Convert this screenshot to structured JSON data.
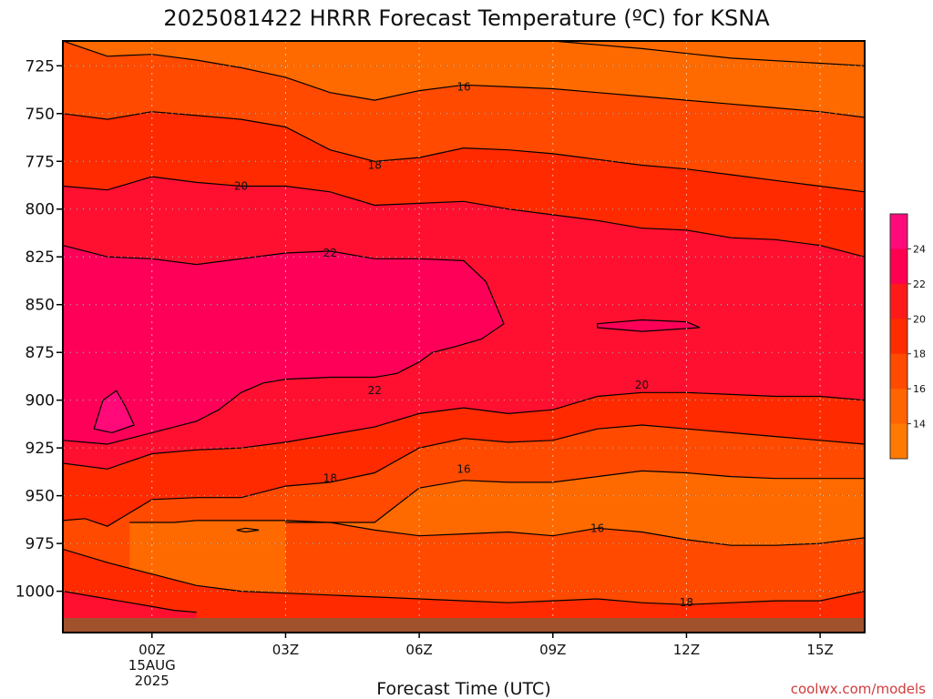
{
  "chart_data": {
    "type": "contour",
    "title": "2025081422 HRRR Forecast Temperature (ºC) for KSNA",
    "xlabel": "Forecast Time (UTC)",
    "credit": "coolwx.com/models",
    "y_ticks": [
      "725",
      "750",
      "775",
      "800",
      "825",
      "850",
      "875",
      "900",
      "925",
      "950",
      "975",
      "1000"
    ],
    "y_values": [
      725,
      750,
      775,
      800,
      825,
      850,
      875,
      900,
      925,
      950,
      975,
      1000
    ],
    "ylim": [
      712,
      1014
    ],
    "y_inverted": true,
    "x_ticks": [
      {
        "hour": 0,
        "label": "00Z",
        "sub1": "15AUG",
        "sub2": "2025"
      },
      {
        "hour": 3,
        "label": "03Z",
        "sub1": "",
        "sub2": ""
      },
      {
        "hour": 6,
        "label": "06Z",
        "sub1": "",
        "sub2": ""
      },
      {
        "hour": 9,
        "label": "09Z",
        "sub1": "",
        "sub2": ""
      },
      {
        "hour": 12,
        "label": "12Z",
        "sub1": "",
        "sub2": ""
      },
      {
        "hour": 15,
        "label": "15Z",
        "sub1": "",
        "sub2": ""
      }
    ],
    "xlim": [
      -2,
      16
    ],
    "grid": true,
    "levels": [
      14,
      16,
      18,
      20,
      22,
      24
    ],
    "colorbar": {
      "labels": [
        "24",
        "22",
        "20",
        "18",
        "16",
        "14"
      ],
      "colors": [
        "#ff0a7a",
        "#ff0050",
        "#ff1a1a",
        "#ff2c00",
        "#ff4a00",
        "#ff6400",
        "#ff7a00"
      ]
    },
    "fill_colors": {
      "above_16": "#ff6a00",
      "t16_18": "#ff4a00",
      "t18_20": "#ff2a00",
      "t20_22": "#ff1030",
      "t22_24": "#ff0058",
      "t24_plus": "#ff0a78",
      "ground": "#a0522d"
    },
    "contour_labels": [
      {
        "text": "16",
        "x": 7.0,
        "y": 736
      },
      {
        "text": "18",
        "x": 5.0,
        "y": 777
      },
      {
        "text": "20",
        "x": 2.0,
        "y": 788
      },
      {
        "text": "22",
        "x": 4.0,
        "y": 823
      },
      {
        "text": "22",
        "x": 5.0,
        "y": 895
      },
      {
        "text": "20",
        "x": 11.0,
        "y": 892
      },
      {
        "text": "18",
        "x": 4.0,
        "y": 941
      },
      {
        "text": "16",
        "x": 7.0,
        "y": 936
      },
      {
        "text": "16",
        "x": 10.0,
        "y": 967
      },
      {
        "text": "18",
        "x": 12.0,
        "y": 1006
      }
    ],
    "contours": {
      "c16_upper": [
        [
          -2,
          712
        ],
        [
          -1.5,
          716
        ],
        [
          -1,
          720
        ],
        [
          0,
          719
        ],
        [
          1,
          722
        ],
        [
          2,
          726
        ],
        [
          3,
          731
        ],
        [
          4,
          739
        ],
        [
          5,
          743
        ],
        [
          6,
          738
        ],
        [
          7,
          735
        ],
        [
          8,
          736
        ],
        [
          9,
          737
        ],
        [
          10,
          739
        ],
        [
          11,
          741
        ],
        [
          12,
          743
        ],
        [
          13,
          745
        ],
        [
          14,
          747
        ],
        [
          15,
          749
        ],
        [
          16,
          752
        ]
      ],
      "c16_top": [
        [
          9,
          712
        ],
        [
          11,
          716
        ],
        [
          13,
          721
        ],
        [
          16,
          725
        ]
      ],
      "c18_upper": [
        [
          -2,
          750
        ],
        [
          -1,
          753
        ],
        [
          0,
          749
        ],
        [
          1,
          751
        ],
        [
          2,
          753
        ],
        [
          3,
          757
        ],
        [
          4,
          769
        ],
        [
          5,
          775
        ],
        [
          6,
          773
        ],
        [
          7,
          768
        ],
        [
          8,
          769
        ],
        [
          9,
          771
        ],
        [
          10,
          774
        ],
        [
          11,
          777
        ],
        [
          12,
          779
        ],
        [
          13,
          782
        ],
        [
          14,
          785
        ],
        [
          15,
          788
        ],
        [
          16,
          791
        ]
      ],
      "c20_upper": [
        [
          -2,
          788
        ],
        [
          -1,
          790
        ],
        [
          0,
          783
        ],
        [
          1,
          786
        ],
        [
          2,
          788
        ],
        [
          3,
          788
        ],
        [
          4,
          791
        ],
        [
          5,
          798
        ],
        [
          6,
          797
        ],
        [
          7,
          796
        ],
        [
          8,
          800
        ],
        [
          9,
          803
        ],
        [
          10,
          806
        ],
        [
          11,
          810
        ],
        [
          12,
          811
        ],
        [
          13,
          815
        ],
        [
          14,
          816
        ],
        [
          15,
          819
        ],
        [
          16,
          825
        ]
      ],
      "c22_upper": [
        [
          -2,
          819
        ],
        [
          -1,
          825
        ],
        [
          0,
          826
        ],
        [
          1,
          829
        ],
        [
          2,
          826
        ],
        [
          3,
          823
        ],
        [
          4,
          822
        ],
        [
          5,
          826
        ],
        [
          6,
          826
        ],
        [
          7,
          827
        ],
        [
          7.5,
          838
        ],
        [
          7.9,
          860
        ],
        [
          7.4,
          868
        ],
        [
          6.8,
          872
        ],
        [
          6.3,
          875
        ],
        [
          6,
          880
        ],
        [
          5.5,
          886
        ],
        [
          5,
          888
        ],
        [
          4,
          888
        ],
        [
          3,
          889
        ],
        [
          2.5,
          891
        ],
        [
          2,
          896
        ],
        [
          1.5,
          905
        ],
        [
          1,
          911
        ],
        [
          0,
          917
        ],
        [
          -0.5,
          920
        ],
        [
          -1,
          923
        ],
        [
          -1.5,
          922
        ],
        [
          -2,
          921
        ]
      ],
      "c20_lower": [
        [
          -2,
          933
        ],
        [
          -1,
          936
        ],
        [
          0,
          928
        ],
        [
          1,
          926
        ],
        [
          2,
          925
        ],
        [
          3,
          922
        ],
        [
          4,
          918
        ],
        [
          5,
          914
        ],
        [
          6,
          907
        ],
        [
          7,
          904
        ],
        [
          8,
          907
        ],
        [
          9,
          905
        ],
        [
          10,
          898
        ],
        [
          11,
          896
        ],
        [
          12,
          896
        ],
        [
          13,
          897
        ],
        [
          14,
          898
        ],
        [
          15,
          898
        ],
        [
          16,
          900
        ]
      ],
      "c18_lower": [
        [
          -2,
          963
        ],
        [
          -1.5,
          962
        ],
        [
          -1,
          966
        ],
        [
          0,
          952
        ],
        [
          1,
          951
        ],
        [
          2,
          951
        ],
        [
          3,
          945
        ],
        [
          4,
          943
        ],
        [
          5,
          938
        ],
        [
          6,
          925
        ],
        [
          7,
          920
        ],
        [
          8,
          922
        ],
        [
          9,
          921
        ],
        [
          10,
          915
        ],
        [
          11,
          913
        ],
        [
          12,
          915
        ],
        [
          13,
          917
        ],
        [
          14,
          919
        ],
        [
          15,
          921
        ],
        [
          16,
          923
        ]
      ],
      "c16_lower": [
        [
          -0.5,
          964
        ],
        [
          0.5,
          964
        ],
        [
          1,
          963
        ],
        [
          3,
          963
        ],
        [
          4,
          964
        ],
        [
          5,
          964
        ],
        [
          6,
          946
        ],
        [
          7,
          942
        ],
        [
          8,
          943
        ],
        [
          9,
          943
        ],
        [
          10,
          940
        ],
        [
          11,
          937
        ],
        [
          12,
          938
        ],
        [
          13,
          940
        ],
        [
          14,
          941
        ],
        [
          15,
          941
        ],
        [
          16,
          941
        ]
      ],
      "c16_below": [
        [
          3,
          964
        ],
        [
          4,
          964
        ],
        [
          5,
          968
        ],
        [
          6,
          971
        ],
        [
          7,
          970
        ],
        [
          8,
          969
        ],
        [
          9,
          971
        ],
        [
          10,
          967
        ],
        [
          11,
          969
        ],
        [
          12,
          973
        ],
        [
          13,
          976
        ],
        [
          14,
          976
        ],
        [
          15,
          975
        ],
        [
          16,
          972
        ]
      ],
      "c18_near_ground": [
        [
          -2,
          978
        ],
        [
          -1,
          985
        ],
        [
          0,
          991
        ],
        [
          1,
          997
        ],
        [
          2,
          1000
        ],
        [
          3,
          1001
        ],
        [
          4,
          1002
        ],
        [
          5,
          1003
        ],
        [
          6,
          1004
        ],
        [
          7,
          1005
        ],
        [
          8,
          1006
        ],
        [
          9,
          1005
        ],
        [
          10,
          1004
        ],
        [
          11,
          1006
        ],
        [
          12,
          1007
        ],
        [
          13,
          1006
        ],
        [
          14,
          1005
        ],
        [
          15,
          1005
        ],
        [
          16,
          1000
        ]
      ],
      "c20_near_ground": [
        [
          -2,
          1000
        ],
        [
          -1,
          1004
        ],
        [
          0,
          1008
        ],
        [
          0.5,
          1010
        ],
        [
          1,
          1011
        ]
      ],
      "c16_pocket": [
        [
          1.9,
          968
        ],
        [
          2.1,
          967
        ],
        [
          2.4,
          968
        ],
        [
          2.1,
          969
        ],
        [
          1.9,
          968
        ]
      ],
      "c24_bubble": [
        [
          -1.3,
          915
        ],
        [
          -1.1,
          900
        ],
        [
          -0.8,
          895
        ],
        [
          -0.6,
          903
        ],
        [
          -0.4,
          913
        ],
        [
          -0.9,
          917
        ],
        [
          -1.3,
          915
        ]
      ],
      "c22_inset": [
        [
          10,
          860
        ],
        [
          11,
          858
        ],
        [
          12,
          859
        ],
        [
          12.3,
          862
        ],
        [
          11,
          864
        ],
        [
          10,
          862
        ],
        [
          10,
          860
        ]
      ]
    }
  }
}
